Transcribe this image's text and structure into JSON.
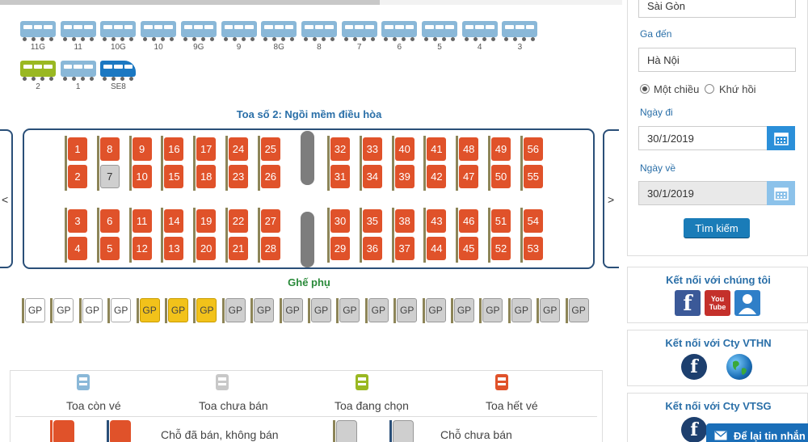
{
  "train": {
    "cars_row1": [
      "11G",
      "11",
      "10G",
      "10",
      "9G",
      "9",
      "8G",
      "8",
      "7",
      "6",
      "5",
      "4",
      "3"
    ],
    "cars_row2": [
      {
        "label": "2",
        "state": "selected"
      },
      {
        "label": "1",
        "state": "available"
      },
      {
        "label": "SE8",
        "state": "locomotive"
      }
    ]
  },
  "coach": {
    "title": "Toa số 2: Ngồi mềm điều hòa",
    "nav_prev": "<",
    "nav_next": ">",
    "seats_left_top": [
      [
        "1",
        "2"
      ],
      [
        "8",
        "7"
      ],
      [
        "9",
        "10"
      ],
      [
        "16",
        "15"
      ],
      [
        "17",
        "18"
      ],
      [
        "24",
        "23"
      ],
      [
        "25",
        "26"
      ]
    ],
    "seats_right_top": [
      [
        "32",
        "31"
      ],
      [
        "33",
        "34"
      ],
      [
        "40",
        "39"
      ],
      [
        "41",
        "42"
      ],
      [
        "48",
        "47"
      ],
      [
        "49",
        "50"
      ],
      [
        "56",
        "55"
      ]
    ],
    "seats_left_bottom": [
      [
        "3",
        "4"
      ],
      [
        "6",
        "5"
      ],
      [
        "11",
        "12"
      ],
      [
        "14",
        "13"
      ],
      [
        "19",
        "20"
      ],
      [
        "22",
        "21"
      ],
      [
        "27",
        "28"
      ]
    ],
    "seats_right_bottom": [
      [
        "30",
        "29"
      ],
      [
        "35",
        "36"
      ],
      [
        "38",
        "37"
      ],
      [
        "43",
        "44"
      ],
      [
        "46",
        "45"
      ],
      [
        "51",
        "52"
      ],
      [
        "54",
        "53"
      ]
    ],
    "free_seats": [
      "7"
    ]
  },
  "extra": {
    "title": "Ghế phụ",
    "seats": [
      {
        "label": "GP",
        "state": "empty"
      },
      {
        "label": "GP",
        "state": "empty"
      },
      {
        "label": "GP",
        "state": "empty"
      },
      {
        "label": "GP",
        "state": "empty"
      },
      {
        "label": "GP",
        "state": "picked"
      },
      {
        "label": "GP",
        "state": "picked"
      },
      {
        "label": "GP",
        "state": "picked"
      },
      {
        "label": "GP",
        "state": "sold"
      },
      {
        "label": "GP",
        "state": "sold"
      },
      {
        "label": "GP",
        "state": "sold"
      },
      {
        "label": "GP",
        "state": "sold"
      },
      {
        "label": "GP",
        "state": "sold"
      },
      {
        "label": "GP",
        "state": "sold"
      },
      {
        "label": "GP",
        "state": "sold"
      },
      {
        "label": "GP",
        "state": "sold"
      },
      {
        "label": "GP",
        "state": "sold"
      },
      {
        "label": "GP",
        "state": "sold"
      },
      {
        "label": "GP",
        "state": "sold"
      },
      {
        "label": "GP",
        "state": "sold"
      },
      {
        "label": "GP",
        "state": "sold"
      }
    ]
  },
  "legend": {
    "cars": [
      {
        "label": "Toa còn vé",
        "color": "#8ab8d8"
      },
      {
        "label": "Toa chưa bán",
        "color": "#c8c8c8"
      },
      {
        "label": "Toa đang chọn",
        "color": "#9ab822"
      },
      {
        "label": "Toa hết vé",
        "color": "#e0522a"
      }
    ],
    "seat_sold": "Chỗ đã bán, không bán",
    "seat_free": "Chỗ chưa bán"
  },
  "search": {
    "from_value": "Sài Gòn",
    "to_label": "Ga đến",
    "to_value": "Hà Nội",
    "one_way": "Một chiều",
    "round_trip": "Khứ hồi",
    "depart_label": "Ngày đi",
    "depart_value": "30/1/2019",
    "return_label": "Ngày về",
    "return_value": "30/1/2019",
    "search_button": "Tìm kiếm"
  },
  "social": {
    "connect_title": "Kết nối với chúng tôi",
    "vthn_title": "Kết nối với Cty VTHN",
    "vtsg_title": "Kết nối với Cty VTSG",
    "fb_glyph": "f",
    "yt_glyph": "You Tube"
  },
  "chat": {
    "label": "Để lại tin nhắn"
  },
  "colors": {
    "sold_seat": "#e0522a",
    "free_seat": "#cfcfcf",
    "picked_seat": "#f2c21a",
    "accent": "#2a6fa8"
  }
}
